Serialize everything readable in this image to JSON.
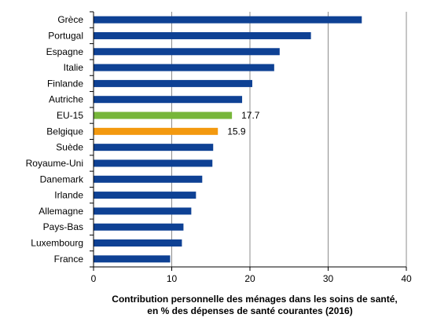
{
  "chart_data": {
    "type": "bar",
    "orientation": "horizontal",
    "categories": [
      "Grèce",
      "Portugal",
      "Espagne",
      "Italie",
      "Finlande",
      "Autriche",
      "EU-15",
      "Belgique",
      "Suède",
      "Royaume-Uni",
      "Danemark",
      "Irlande",
      "Allemagne",
      "Pays-Bas",
      "Luxembourg",
      "France"
    ],
    "values": [
      34.3,
      27.8,
      23.8,
      23.1,
      20.3,
      19.0,
      17.7,
      15.9,
      15.3,
      15.2,
      13.9,
      13.1,
      12.5,
      11.5,
      11.3,
      9.8
    ],
    "bar_colors": [
      "#0e4194",
      "#0e4194",
      "#0e4194",
      "#0e4194",
      "#0e4194",
      "#0e4194",
      "#77b63a",
      "#f3990f",
      "#0e4194",
      "#0e4194",
      "#0e4194",
      "#0e4194",
      "#0e4194",
      "#0e4194",
      "#0e4194",
      "#0e4194"
    ],
    "data_labels": [
      "",
      "",
      "",
      "",
      "",
      "",
      "17.7",
      "15.9",
      "",
      "",
      "",
      "",
      "",
      "",
      "",
      ""
    ],
    "xlim": [
      0,
      40
    ],
    "xticks": [
      0,
      10,
      20,
      30,
      40
    ],
    "xlabel_lines": [
      "Contribution personnelle des ménages dans les soins de santé,",
      "en % des dépenses de santé courantes (2016)"
    ],
    "ylabel": "",
    "grid": "vertical gridlines",
    "legend": "none",
    "colors": {
      "default_bar": "#0e4194",
      "highlight_eu": "#77b63a",
      "highlight_belgique": "#f3990f",
      "grid": "#8c8c8c",
      "axis": "#000000"
    }
  }
}
